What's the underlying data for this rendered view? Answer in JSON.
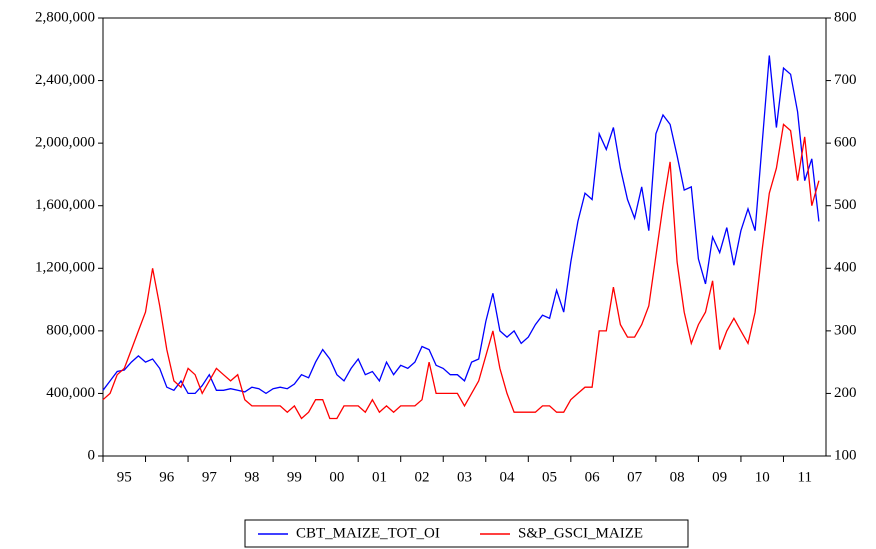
{
  "chart_data": {
    "type": "line",
    "x": [
      0,
      2,
      4,
      6,
      8,
      10,
      12,
      14,
      16,
      18,
      20,
      22,
      24,
      26,
      28,
      30,
      32,
      34,
      36,
      38,
      40,
      42,
      44,
      46,
      48,
      50,
      52,
      54,
      56,
      58,
      60,
      62,
      64,
      66,
      68,
      70,
      72,
      74,
      76,
      78,
      80,
      82,
      84,
      86,
      88,
      90,
      92,
      94,
      96,
      98,
      100,
      102,
      104,
      106,
      108,
      110,
      112,
      114,
      116,
      118,
      120,
      122,
      124,
      126,
      128,
      130,
      132,
      134,
      136,
      138,
      140,
      142,
      144,
      146,
      148,
      150,
      152,
      154,
      156,
      158,
      160,
      162,
      164,
      166,
      168,
      170,
      172,
      174,
      176,
      178,
      180,
      182,
      184,
      186,
      188,
      190,
      192,
      194,
      196,
      198,
      200,
      202
    ],
    "xlim": [
      0,
      204
    ],
    "xticks": [
      {
        "value": 6,
        "label": "95"
      },
      {
        "value": 18,
        "label": "96"
      },
      {
        "value": 30,
        "label": "97"
      },
      {
        "value": 42,
        "label": "98"
      },
      {
        "value": 54,
        "label": "99"
      },
      {
        "value": 66,
        "label": "00"
      },
      {
        "value": 78,
        "label": "01"
      },
      {
        "value": 90,
        "label": "02"
      },
      {
        "value": 102,
        "label": "03"
      },
      {
        "value": 114,
        "label": "04"
      },
      {
        "value": 126,
        "label": "05"
      },
      {
        "value": 138,
        "label": "06"
      },
      {
        "value": 150,
        "label": "07"
      },
      {
        "value": 162,
        "label": "08"
      },
      {
        "value": 174,
        "label": "09"
      },
      {
        "value": 186,
        "label": "10"
      },
      {
        "value": 198,
        "label": "11"
      }
    ],
    "ylim": [
      0,
      2800000
    ],
    "yticks": [
      0,
      {
        "value": 400000,
        "label": "400,000"
      },
      {
        "value": 800000,
        "label": "800,000"
      },
      {
        "value": 1200000,
        "label": "1,200,000"
      },
      {
        "value": 1600000,
        "label": "1,600,000"
      },
      {
        "value": 2000000,
        "label": "2,000,000"
      },
      {
        "value": 2400000,
        "label": "2,400,000"
      },
      {
        "value": 2800000,
        "label": "2,800,000"
      }
    ],
    "y2lim": [
      100,
      800
    ],
    "y2ticks": [
      100,
      200,
      300,
      400,
      500,
      600,
      700,
      800
    ],
    "legend": "bottom",
    "series": [
      {
        "name": "CBT_MAIZE_TOT_OI",
        "color": "#0000ff",
        "values": [
          420000,
          480000,
          540000,
          550000,
          600000,
          640000,
          600000,
          620000,
          560000,
          440000,
          420000,
          480000,
          400000,
          400000,
          450000,
          520000,
          420000,
          420000,
          430000,
          420000,
          410000,
          440000,
          430000,
          400000,
          430000,
          440000,
          430000,
          460000,
          520000,
          500000,
          600000,
          680000,
          620000,
          520000,
          480000,
          560000,
          620000,
          520000,
          540000,
          480000,
          600000,
          520000,
          580000,
          560000,
          600000,
          700000,
          680000,
          580000,
          560000,
          520000,
          520000,
          480000,
          600000,
          620000,
          860000,
          1040000,
          800000,
          760000,
          800000,
          720000,
          760000,
          840000,
          900000,
          880000,
          1060000,
          920000,
          1240000,
          1500000,
          1680000,
          1640000,
          2060000,
          1960000,
          2100000,
          1840000,
          1640000,
          1520000,
          1720000,
          1440000,
          2060000,
          2180000,
          2120000,
          1920000,
          1700000,
          1720000,
          1260000,
          1100000,
          1400000,
          1300000,
          1460000,
          1220000,
          1440000,
          1580000,
          1440000,
          2000000,
          2560000,
          2100000,
          2480000,
          2440000,
          2200000,
          1760000,
          1900000,
          1500000
        ]
      },
      {
        "name": "S&P_GSCI_MAIZE",
        "color": "#ff0000",
        "axis": "y2",
        "values": [
          190,
          200,
          230,
          240,
          270,
          300,
          330,
          400,
          340,
          270,
          220,
          210,
          240,
          230,
          200,
          220,
          240,
          230,
          220,
          230,
          190,
          180,
          180,
          180,
          180,
          180,
          170,
          180,
          160,
          170,
          190,
          190,
          160,
          160,
          180,
          180,
          180,
          170,
          190,
          170,
          180,
          170,
          180,
          180,
          180,
          190,
          250,
          200,
          200,
          200,
          200,
          180,
          200,
          220,
          260,
          300,
          240,
          200,
          170,
          170,
          170,
          170,
          180,
          180,
          170,
          170,
          190,
          200,
          210,
          210,
          300,
          300,
          370,
          310,
          290,
          290,
          310,
          340,
          420,
          500,
          570,
          410,
          330,
          280,
          310,
          330,
          380,
          270,
          300,
          320,
          300,
          280,
          330,
          430,
          520,
          560,
          630,
          620,
          540,
          610,
          500,
          540
        ]
      }
    ]
  }
}
